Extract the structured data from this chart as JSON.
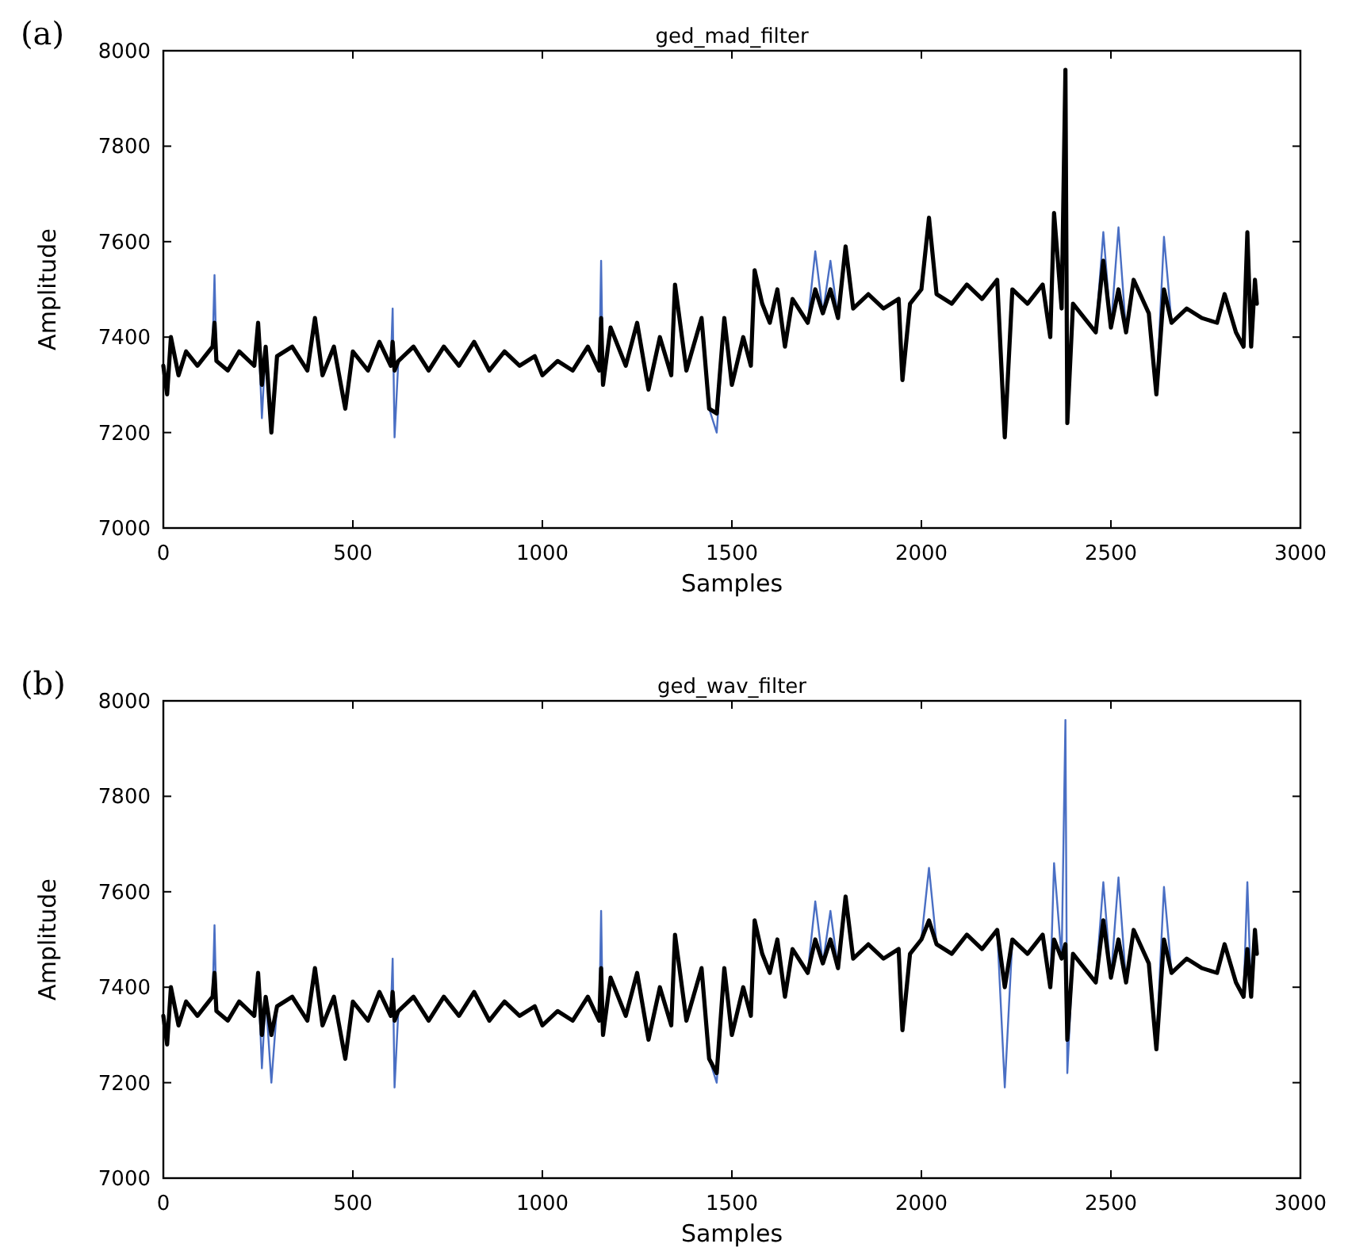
{
  "chart_data": [
    {
      "type": "line",
      "title": "ged_mad_filter",
      "xlabel": "Samples",
      "ylabel": "Amplitude",
      "annotations": [
        "(a)"
      ],
      "xlim": [
        0,
        3000
      ],
      "xticks": [
        0,
        500,
        1000,
        1500,
        2000,
        2500,
        3000
      ],
      "ylim": [
        7000,
        8000
      ],
      "yticks": [
        7000,
        7200,
        7400,
        7600,
        7800,
        8000
      ],
      "x": [
        0,
        10,
        20,
        40,
        60,
        90,
        130,
        135,
        140,
        170,
        200,
        240,
        250,
        260,
        270,
        285,
        300,
        340,
        380,
        400,
        420,
        450,
        480,
        500,
        540,
        570,
        600,
        605,
        610,
        620,
        660,
        700,
        740,
        780,
        820,
        860,
        900,
        940,
        980,
        1000,
        1040,
        1080,
        1120,
        1150,
        1155,
        1160,
        1180,
        1220,
        1250,
        1280,
        1310,
        1340,
        1350,
        1380,
        1420,
        1440,
        1460,
        1480,
        1500,
        1530,
        1550,
        1560,
        1580,
        1600,
        1620,
        1640,
        1660,
        1700,
        1720,
        1740,
        1760,
        1780,
        1800,
        1820,
        1860,
        1900,
        1940,
        1950,
        1970,
        2000,
        2020,
        2040,
        2080,
        2120,
        2160,
        2200,
        2220,
        2240,
        2280,
        2320,
        2340,
        2350,
        2370,
        2380,
        2385,
        2400,
        2440,
        2460,
        2480,
        2500,
        2520,
        2540,
        2560,
        2600,
        2620,
        2640,
        2660,
        2700,
        2740,
        2780,
        2800,
        2830,
        2850,
        2860,
        2870,
        2880,
        2885
      ],
      "series": [
        {
          "color": "#4a6fc4",
          "values": [
            null,
            null,
            null,
            null,
            null,
            null,
            7380,
            7530,
            7350,
            null,
            null,
            null,
            7430,
            7230,
            7380,
            null,
            null,
            null,
            null,
            null,
            null,
            null,
            null,
            null,
            null,
            null,
            7340,
            7460,
            7190,
            7350,
            null,
            null,
            null,
            null,
            null,
            null,
            null,
            null,
            null,
            null,
            null,
            null,
            null,
            7330,
            7560,
            7300,
            null,
            null,
            null,
            null,
            null,
            null,
            null,
            null,
            null,
            7250,
            7200,
            7440,
            null,
            null,
            null,
            null,
            null,
            null,
            null,
            null,
            null,
            7430,
            7580,
            7450,
            7560,
            7440,
            null,
            null,
            null,
            null,
            null,
            null,
            null,
            null,
            null,
            null,
            null,
            null,
            null,
            null,
            null,
            null,
            null,
            null,
            null,
            null,
            null,
            null,
            null,
            null,
            null,
            7410,
            7620,
            7420,
            7630,
            7410,
            null,
            null,
            7280,
            7610,
            7430,
            null,
            null,
            null,
            null,
            null,
            null,
            null,
            null,
            null,
            null
          ]
        },
        {
          "color": "#000000",
          "values": [
            7340,
            7280,
            7400,
            7320,
            7370,
            7340,
            7380,
            7430,
            7350,
            7330,
            7370,
            7340,
            7430,
            7300,
            7380,
            7200,
            7360,
            7380,
            7330,
            7440,
            7320,
            7380,
            7250,
            7370,
            7330,
            7390,
            7340,
            7390,
            7330,
            7350,
            7380,
            7330,
            7380,
            7340,
            7390,
            7330,
            7370,
            7340,
            7360,
            7320,
            7350,
            7330,
            7380,
            7330,
            7440,
            7300,
            7420,
            7340,
            7430,
            7290,
            7400,
            7320,
            7510,
            7330,
            7440,
            7250,
            7240,
            7440,
            7300,
            7400,
            7340,
            7540,
            7470,
            7430,
            7500,
            7380,
            7480,
            7430,
            7500,
            7450,
            7500,
            7440,
            7590,
            7460,
            7490,
            7460,
            7480,
            7310,
            7470,
            7500,
            7650,
            7490,
            7470,
            7510,
            7480,
            7520,
            7190,
            7500,
            7470,
            7510,
            7400,
            7660,
            7460,
            7960,
            7220,
            7470,
            7430,
            7410,
            7560,
            7420,
            7500,
            7410,
            7520,
            7450,
            7280,
            7500,
            7430,
            7460,
            7440,
            7430,
            7490,
            7410,
            7380,
            7620,
            7380,
            7520,
            7470
          ]
        }
      ]
    },
    {
      "type": "line",
      "title": "ged_wav_filter",
      "xlabel": "Samples",
      "ylabel": "Amplitude",
      "annotations": [
        "(b)"
      ],
      "xlim": [
        0,
        3000
      ],
      "xticks": [
        0,
        500,
        1000,
        1500,
        2000,
        2500,
        3000
      ],
      "ylim": [
        7000,
        8000
      ],
      "yticks": [
        7000,
        7200,
        7400,
        7600,
        7800,
        8000
      ],
      "x": [
        0,
        10,
        20,
        40,
        60,
        90,
        130,
        135,
        140,
        170,
        200,
        240,
        250,
        260,
        270,
        285,
        300,
        340,
        380,
        400,
        420,
        450,
        480,
        500,
        540,
        570,
        600,
        605,
        610,
        620,
        660,
        700,
        740,
        780,
        820,
        860,
        900,
        940,
        980,
        1000,
        1040,
        1080,
        1120,
        1150,
        1155,
        1160,
        1180,
        1220,
        1250,
        1280,
        1310,
        1340,
        1350,
        1380,
        1420,
        1440,
        1460,
        1480,
        1500,
        1530,
        1550,
        1560,
        1580,
        1600,
        1620,
        1640,
        1660,
        1700,
        1720,
        1740,
        1760,
        1780,
        1800,
        1820,
        1860,
        1900,
        1940,
        1950,
        1970,
        2000,
        2020,
        2040,
        2080,
        2120,
        2160,
        2200,
        2220,
        2240,
        2280,
        2320,
        2340,
        2350,
        2370,
        2380,
        2385,
        2400,
        2440,
        2460,
        2480,
        2500,
        2520,
        2540,
        2560,
        2600,
        2620,
        2640,
        2660,
        2700,
        2740,
        2780,
        2800,
        2830,
        2850,
        2860,
        2870,
        2880,
        2885
      ],
      "series": [
        {
          "color": "#4a6fc4",
          "values": [
            null,
            null,
            null,
            null,
            null,
            null,
            7380,
            7530,
            7350,
            null,
            null,
            null,
            7430,
            7230,
            7380,
            7200,
            7360,
            null,
            null,
            null,
            null,
            null,
            null,
            null,
            null,
            null,
            7340,
            7460,
            7190,
            7350,
            null,
            null,
            null,
            null,
            null,
            null,
            null,
            null,
            null,
            null,
            null,
            null,
            null,
            7330,
            7560,
            7300,
            null,
            null,
            null,
            null,
            null,
            null,
            null,
            null,
            null,
            7250,
            7200,
            7440,
            null,
            null,
            null,
            null,
            null,
            null,
            null,
            null,
            null,
            7430,
            7580,
            7450,
            7560,
            7440,
            null,
            null,
            null,
            null,
            null,
            null,
            null,
            7500,
            7650,
            7490,
            null,
            null,
            null,
            7520,
            7190,
            7500,
            null,
            null,
            7400,
            7660,
            7460,
            7960,
            7220,
            7470,
            null,
            7410,
            7620,
            7420,
            7630,
            7410,
            null,
            7450,
            7280,
            7610,
            7430,
            null,
            null,
            null,
            null,
            null,
            7380,
            7620,
            7380,
            null,
            null
          ]
        },
        {
          "color": "#000000",
          "values": [
            7340,
            7280,
            7400,
            7320,
            7370,
            7340,
            7380,
            7430,
            7350,
            7330,
            7370,
            7340,
            7430,
            7300,
            7380,
            7300,
            7360,
            7380,
            7330,
            7440,
            7320,
            7380,
            7250,
            7370,
            7330,
            7390,
            7340,
            7390,
            7330,
            7350,
            7380,
            7330,
            7380,
            7340,
            7390,
            7330,
            7370,
            7340,
            7360,
            7320,
            7350,
            7330,
            7380,
            7330,
            7440,
            7300,
            7420,
            7340,
            7430,
            7290,
            7400,
            7320,
            7510,
            7330,
            7440,
            7250,
            7220,
            7440,
            7300,
            7400,
            7340,
            7540,
            7470,
            7430,
            7500,
            7380,
            7480,
            7430,
            7500,
            7450,
            7500,
            7440,
            7590,
            7460,
            7490,
            7460,
            7480,
            7310,
            7470,
            7500,
            7540,
            7490,
            7470,
            7510,
            7480,
            7520,
            7400,
            7500,
            7470,
            7510,
            7400,
            7500,
            7460,
            7490,
            7290,
            7470,
            7430,
            7410,
            7540,
            7420,
            7500,
            7410,
            7520,
            7450,
            7270,
            7500,
            7430,
            7460,
            7440,
            7430,
            7490,
            7410,
            7380,
            7480,
            7380,
            7520,
            7470
          ]
        }
      ]
    }
  ]
}
